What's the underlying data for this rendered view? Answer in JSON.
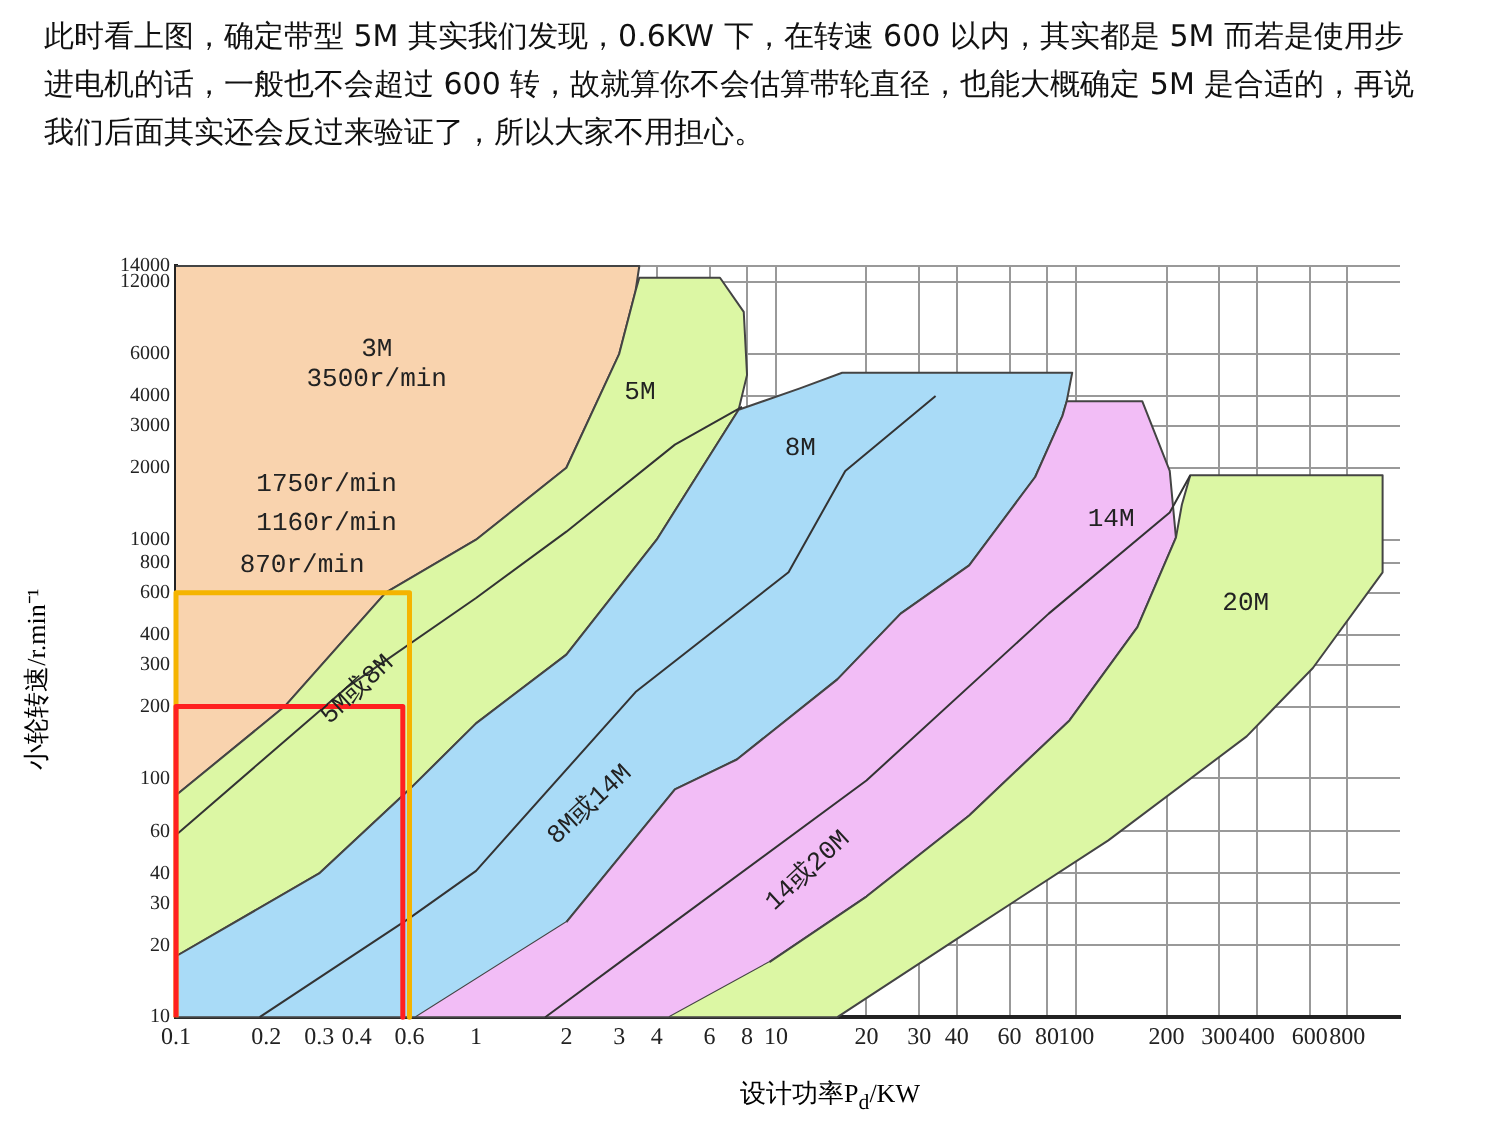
{
  "chart_data": {
    "type": "area",
    "title": "此时看上图，确定带型 5M 其实我们发现，0.6KW 下，在转速 600 以内，其实都是 5M 而若是使用步进电机的话，一般也不会超过 600 转，故就算你不会估算带轮直径，也能大概确定 5M 是合适的，再说我们后面其实还会反过来验证了，所以大家不用担心。",
    "xlabel": "设计功率P$_{d}$/KW",
    "ylabel": "小轮转速/r.min⁻¹",
    "log": "xy",
    "grid": true,
    "legend": false,
    "xlim": [
      0.1,
      1200
    ],
    "ylim": [
      10,
      14000
    ],
    "xticks": [
      0.1,
      0.2,
      0.3,
      0.4,
      0.6,
      1,
      2,
      3,
      4,
      6,
      8,
      10,
      20,
      30,
      40,
      60,
      80,
      100,
      200,
      300,
      400,
      600,
      800
    ],
    "yticks": [
      10,
      20,
      30,
      40,
      60,
      100,
      200,
      300,
      400,
      600,
      800,
      1000,
      2000,
      3000,
      4000,
      6000,
      12000,
      14000
    ],
    "series": [
      {
        "color": "#f9d3ae",
        "x": [
          0.1,
          3.5,
          3.4,
          3,
          2,
          1,
          0.5,
          0.23,
          0.1
        ],
        "values": [
          14000,
          14000,
          11000,
          6000,
          2000,
          1000,
          600,
          200,
          85
        ]
      },
      {
        "color": "#dcf7a4",
        "x": [
          0.1,
          0.23,
          0.5,
          1,
          2,
          3,
          3.4,
          3.5,
          6.5,
          7.8,
          8,
          7.5,
          4,
          2,
          1,
          0.6,
          0.3,
          0.1
        ],
        "values": [
          85,
          200,
          600,
          1000,
          2000,
          6000,
          11000,
          12500,
          12500,
          9000,
          4900,
          3500,
          1000,
          330,
          170,
          90,
          40,
          18
        ]
      },
      {
        "color": "#a9dbf7",
        "x": [
          0.1,
          0.63,
          2,
          4.6,
          7.4,
          16,
          26,
          44,
          73,
          90,
          93,
          97,
          16.6,
          12,
          7.5,
          4,
          2,
          1,
          0.6,
          0.3,
          0.1
        ],
        "values": [
          10,
          10,
          25,
          90,
          120,
          260,
          490,
          780,
          1830,
          3300,
          3800,
          5000,
          5000,
          4300,
          3500,
          1000,
          330,
          170,
          90,
          40,
          18
        ]
      },
      {
        "color": "#f2bdf6",
        "x": [
          0.63,
          4.4,
          9.5,
          20,
          44,
          95,
          160,
          215,
          205,
          166,
          93,
          90,
          73,
          44,
          26,
          16,
          7.4,
          4.6,
          2
        ],
        "values": [
          10,
          10,
          17,
          32,
          70,
          175,
          430,
          1020,
          1940,
          3800,
          3800,
          3300,
          1830,
          780,
          490,
          260,
          120,
          90,
          25
        ]
      },
      {
        "color": "#dcf7a4",
        "x": [
          4.4,
          16,
          44,
          128,
          370,
          615,
          1050,
          1050,
          240,
          225,
          215,
          160,
          95,
          44,
          20,
          9.5
        ],
        "values": [
          10,
          10,
          23,
          55,
          150,
          290,
          730,
          1860,
          1860,
          1400,
          1020,
          430,
          175,
          70,
          32,
          17
        ]
      },
      {
        "type": "line",
        "color": "#333333",
        "x": [
          0.1,
          0.37,
          1,
          2,
          4.6,
          7.7
        ],
        "values": [
          58,
          240,
          570,
          1080,
          2500,
          3600
        ]
      },
      {
        "type": "line",
        "color": "#333333",
        "x": [
          0.19,
          0.6,
          1,
          3.4,
          11,
          17,
          34
        ],
        "values": [
          10,
          26,
          41,
          230,
          730,
          1940,
          4000
        ]
      },
      {
        "type": "line",
        "color": "#333333",
        "x": [
          1.7,
          3.4,
          20,
          81,
          205,
          240
        ],
        "values": [
          10,
          19,
          98,
          490,
          1300,
          1860
        ]
      },
      {
        "type": "line",
        "color": "#f5b400",
        "x": [
          0.1,
          0.1,
          0.6,
          0.6
        ],
        "values": [
          10,
          600,
          600,
          10
        ]
      },
      {
        "type": "line",
        "color": "#ff2020",
        "x": [
          0.1,
          0.1,
          0.57,
          0.57
        ],
        "values": [
          10,
          200,
          200,
          10
        ]
      }
    ],
    "annotations": [
      "3M",
      "3500r/min",
      "1750r/min",
      "1160r/min",
      "870r/min",
      "5M",
      "8M",
      "14M",
      "20M",
      "5M或8M",
      "8M或14M",
      "14或20M"
    ]
  }
}
